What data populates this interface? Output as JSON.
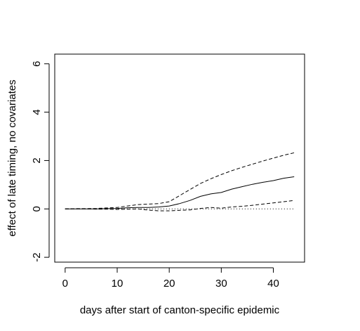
{
  "chart_data": {
    "type": "line",
    "xlabel": "days after start of canton-specific epidemic",
    "ylabel": "effect of late timing, no covariates",
    "xlim": [
      -2,
      46
    ],
    "ylim": [
      -2.2,
      6.4
    ],
    "x_ticks": [
      0,
      10,
      20,
      30,
      40
    ],
    "y_ticks": [
      -2,
      0,
      2,
      4,
      6
    ],
    "x_tick_labels": [
      "0",
      "10",
      "20",
      "30",
      "40"
    ],
    "y_tick_labels": [
      "-2",
      "0",
      "2",
      "4",
      "6"
    ],
    "grid": false,
    "reference_line": {
      "y": 0,
      "style": "dotted"
    },
    "series": [
      {
        "role": "estimate",
        "style": "solid",
        "x": [
          0,
          2,
          4,
          6,
          8,
          10,
          12,
          14,
          16,
          18,
          20,
          22,
          24,
          26,
          28,
          30,
          32,
          34,
          36,
          38,
          40,
          42,
          44
        ],
        "values": [
          0.0,
          0.0,
          0.0,
          0.0,
          0.01,
          0.02,
          0.05,
          0.06,
          0.06,
          0.08,
          0.12,
          0.22,
          0.35,
          0.52,
          0.62,
          0.68,
          0.82,
          0.92,
          1.02,
          1.1,
          1.17,
          1.27,
          1.33
        ]
      },
      {
        "role": "upper bound",
        "style": "dashed",
        "x": [
          0,
          2,
          4,
          6,
          8,
          10,
          12,
          14,
          16,
          18,
          20,
          22,
          24,
          26,
          28,
          30,
          32,
          34,
          36,
          38,
          40,
          42,
          44
        ],
        "values": [
          0.0,
          0.01,
          0.01,
          0.02,
          0.04,
          0.06,
          0.12,
          0.18,
          0.2,
          0.22,
          0.3,
          0.55,
          0.8,
          1.05,
          1.25,
          1.42,
          1.58,
          1.72,
          1.85,
          1.98,
          2.1,
          2.22,
          2.32
        ]
      },
      {
        "role": "lower bound",
        "style": "dashed",
        "x": [
          0,
          2,
          4,
          6,
          8,
          10,
          12,
          14,
          16,
          18,
          20,
          22,
          24,
          26,
          28,
          30,
          32,
          34,
          36,
          38,
          40,
          42,
          44
        ],
        "values": [
          0.0,
          0.0,
          0.0,
          -0.01,
          -0.01,
          -0.02,
          -0.01,
          0.0,
          -0.05,
          -0.08,
          -0.08,
          -0.06,
          -0.04,
          0.02,
          0.06,
          0.03,
          0.08,
          0.11,
          0.15,
          0.2,
          0.25,
          0.3,
          0.35
        ]
      }
    ]
  }
}
